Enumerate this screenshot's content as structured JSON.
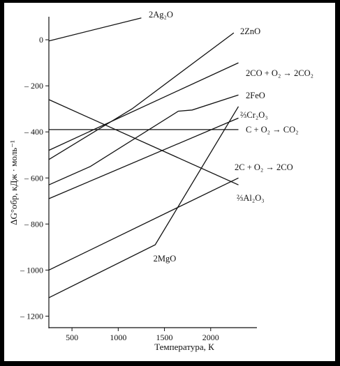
{
  "chart_data": {
    "type": "line",
    "xlabel": "Температура, К",
    "ylabel": "ΔG°обр, кДж · моль⁻¹",
    "xlim": [
      250,
      2500
    ],
    "ylim": [
      -1250,
      100
    ],
    "xticks": [
      500,
      1000,
      1500,
      2000
    ],
    "yticks": [
      0,
      -200,
      -400,
      -600,
      -800,
      -1000,
      -1200
    ],
    "grid": false,
    "legend": "none",
    "series": [
      {
        "name": "2Ag₂O",
        "x": [
          250,
          1250
        ],
        "y": [
          -5,
          95
        ]
      },
      {
        "name": "2ZnO",
        "x": [
          250,
          1150,
          2250
        ],
        "y": [
          -520,
          -300,
          30
        ]
      },
      {
        "name": "2CO + O₂ → 2CO₂",
        "x": [
          250,
          2300
        ],
        "y": [
          -480,
          -100
        ]
      },
      {
        "name": "2FeO",
        "x": [
          250,
          700,
          1650,
          1800,
          2300
        ],
        "y": [
          -630,
          -550,
          -310,
          -305,
          -240
        ]
      },
      {
        "name": "⅔Cr₂O₃",
        "x": [
          250,
          2300
        ],
        "y": [
          -690,
          -340
        ]
      },
      {
        "name": "C + O₂ → CO₂",
        "x": [
          250,
          2300
        ],
        "y": [
          -390,
          -390
        ]
      },
      {
        "name": "2C + O₂ → 2CO",
        "x": [
          250,
          2300
        ],
        "y": [
          -260,
          -630
        ]
      },
      {
        "name": "⅔Al₂O₃",
        "x": [
          250,
          2300
        ],
        "y": [
          -1000,
          -600
        ]
      },
      {
        "name": "2MgO",
        "x": [
          250,
          1400,
          2300
        ],
        "y": [
          -1120,
          -890,
          -290
        ]
      }
    ]
  }
}
